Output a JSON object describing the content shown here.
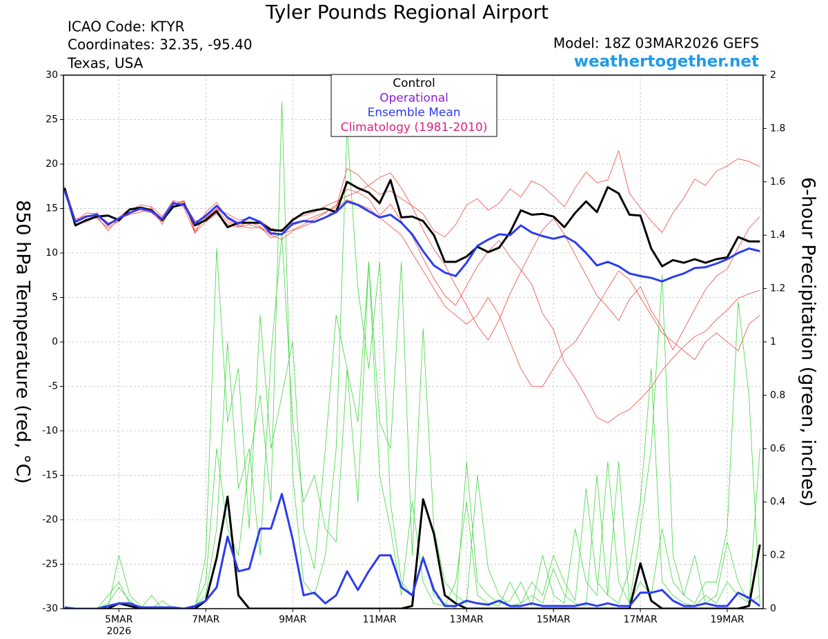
{
  "chart_data": {
    "type": "line",
    "title": "Tyler Pounds Regional Airport",
    "info_left": [
      "ICAO Code: KTYR",
      "Coordinates: 32.35, -95.40",
      "Texas, USA"
    ],
    "model": "Model: 18Z 03MAR2026 GEFS",
    "site": "weathertogether.net",
    "ylabel": "850 hPa Temperature (red, °C)",
    "y2label": "6-hour Precipitation (green, inches)",
    "legend_entries": [
      {
        "text": "Control",
        "color": "#000000"
      },
      {
        "text": "Operational",
        "color": "#8a1fd1"
      },
      {
        "text": "Ensemble Mean",
        "color": "#2b3cf0"
      },
      {
        "text": "Climatology (1981-2010)",
        "color": "#e0207a"
      }
    ],
    "xlim": [
      -0.1,
      64.3
    ],
    "xticks": [
      {
        "value": 5,
        "label": "5MAR"
      },
      {
        "value": 13,
        "label": "7MAR"
      },
      {
        "value": 21,
        "label": "9MAR"
      },
      {
        "value": 29,
        "label": "11MAR"
      },
      {
        "value": 37,
        "label": "13MAR"
      },
      {
        "value": 45,
        "label": "15MAR"
      },
      {
        "value": 53,
        "label": "17MAR"
      },
      {
        "value": 61,
        "label": "19MAR"
      }
    ],
    "year_label": "2026",
    "ylim": [
      -30,
      30
    ],
    "yticks": [
      -30,
      -25,
      -20,
      -15,
      -10,
      -5,
      0,
      5,
      10,
      15,
      20,
      25,
      30
    ],
    "y2lim": [
      0,
      2
    ],
    "y2ticks": [
      0,
      0.2,
      0.4,
      0.6,
      0.8,
      1,
      1.2,
      1.4,
      1.6,
      1.8,
      2
    ],
    "grid": true,
    "members": [
      {
        "color": "#f0473c",
        "values": [
          17,
          13.5,
          14,
          14.5,
          13,
          14,
          15,
          14.8,
          14.5,
          13.5,
          15.5,
          15.8,
          12.5,
          14,
          15,
          13.5,
          13,
          13.5,
          13,
          12,
          11.5,
          12.5,
          13,
          13.5,
          14,
          15,
          16,
          15.5,
          15,
          14,
          13,
          12,
          10,
          8,
          6,
          4,
          3,
          2,
          3,
          5,
          3,
          0,
          -3,
          -5,
          -5,
          -3,
          -1,
          0,
          2,
          4,
          6,
          8,
          7,
          5,
          3,
          1,
          0,
          -1,
          -2,
          0,
          1,
          0,
          -1,
          2,
          3
        ]
      },
      {
        "color": "#f0473c",
        "values": [
          17.5,
          13.8,
          14.2,
          13.9,
          12.8,
          13.6,
          14.6,
          15.2,
          14.9,
          13.9,
          15.4,
          15.9,
          12.3,
          13.5,
          14.4,
          13.2,
          12.9,
          13.2,
          12.8,
          12.2,
          12.7,
          13.1,
          13.6,
          14.1,
          14.6,
          15.2,
          19.5,
          18.8,
          17.5,
          16.6,
          17,
          16.1,
          15.3,
          14.4,
          12.5,
          11.8,
          13.2,
          15.4,
          16.1,
          14.8,
          15.6,
          17.2,
          16.3,
          18.1,
          17.5,
          16.4,
          15.2,
          17.3,
          19.1,
          17.9,
          18.2,
          21.5,
          16.7,
          15.1,
          13.6,
          12.3,
          14.5,
          16.2,
          18.3,
          17.6,
          19.2,
          19.8,
          20.6,
          20.3,
          19.7
        ]
      },
      {
        "color": "#f0473c",
        "values": [
          16.8,
          13.2,
          13.5,
          14.1,
          12.5,
          13.9,
          14.3,
          14.6,
          15.1,
          13.2,
          15.8,
          15.1,
          12.2,
          14.6,
          15.7,
          13.8,
          13.1,
          12.8,
          12.9,
          11.7,
          12.1,
          12.6,
          13.2,
          13.8,
          14.5,
          15.4,
          17.2,
          16.8,
          16.1,
          14.2,
          15.5,
          13.6,
          11.9,
          9.4,
          7.1,
          5.2,
          4.1,
          6.3,
          8.5,
          10.2,
          11.4,
          9.6,
          8.1,
          6.5,
          3.2,
          1.4,
          -2.3,
          -4.1,
          -6.2,
          -8.5,
          -9.1,
          -8.2,
          -7.6,
          -6.4,
          -5.1,
          -3.2,
          -1.8,
          -0.5,
          0.6,
          1.2,
          2.5,
          3.6,
          4.9,
          5.4,
          5.8
        ]
      },
      {
        "color": "#f0473c",
        "values": [
          17.2,
          13.6,
          14.5,
          14.4,
          13.4,
          13.5,
          14.8,
          15.4,
          15.2,
          14.1,
          15.9,
          15.6,
          13.6,
          13.9,
          14.9,
          14.4,
          13.7,
          13.9,
          13.6,
          12.8,
          12.4,
          13.9,
          14.2,
          14.6,
          15.3,
          15.8,
          16.4,
          16.9,
          17.6,
          18.5,
          19,
          17.3,
          15.2,
          12.6,
          10.4,
          8.7,
          6.3,
          4.1,
          1.8,
          0.2,
          2.5,
          5.4,
          7.9,
          10.3,
          12.6,
          13.9,
          12.1,
          9.8,
          7.5,
          5.2,
          3.9,
          2.4,
          4.8,
          6.2,
          3.5,
          1.6,
          -0.9,
          1.4,
          3.7,
          5.9,
          7.4,
          8.2,
          10.6,
          12.8,
          14.1
        ]
      },
      {
        "color": "#3ed63e",
        "axis": "y2",
        "values": [
          0,
          0,
          0,
          0,
          0.05,
          0.1,
          0.02,
          0,
          0,
          0.03,
          0,
          0,
          0.01,
          0.1,
          0.6,
          0.3,
          0.2,
          0.55,
          0.8,
          0.4,
          1.9,
          0.5,
          0.1,
          0.05,
          0.2,
          0.6,
          1.8,
          1.2,
          0.9,
          1.3,
          0.4,
          0.1,
          0.05,
          0.2,
          0.05,
          0.02,
          0,
          0.55,
          0.1,
          0.05,
          0.02,
          0.03,
          0.1,
          0.01,
          0.2,
          0.05,
          0.02,
          0.3,
          0.1,
          0.05,
          0.55,
          0.1,
          0.02,
          0.3,
          0.6,
          1.25,
          0.2,
          0.05,
          0.02,
          0.1,
          0.1,
          0.3,
          1.15,
          0.8,
          0.02
        ]
      },
      {
        "color": "#3ed63e",
        "axis": "y2",
        "values": [
          0,
          0,
          0,
          0,
          0,
          0.2,
          0.05,
          0.01,
          0,
          0,
          0,
          0,
          0,
          0.2,
          1.35,
          0.7,
          0.9,
          0.3,
          1.1,
          0.6,
          0.8,
          1.0,
          0.3,
          0.15,
          0.6,
          1.1,
          0.9,
          0.4,
          1.3,
          0.7,
          0.6,
          1.3,
          0.2,
          1.05,
          0.3,
          0.1,
          0.05,
          0.02,
          0.5,
          0.15,
          0.05,
          0.01,
          0.02,
          0.1,
          0.05,
          0.2,
          0.1,
          0.03,
          0.45,
          0.1,
          0.05,
          0.55,
          0.02,
          0.1,
          0.05,
          0.3,
          0.1,
          0.05,
          0.2,
          0.02,
          0.05,
          0.25,
          0.1,
          0.02,
          0.05
        ]
      },
      {
        "color": "#3ed63e",
        "axis": "y2",
        "values": [
          0,
          0,
          0,
          0,
          0.02,
          0.08,
          0.03,
          0,
          0.05,
          0,
          0,
          0,
          0.01,
          0.05,
          0.3,
          1.0,
          0.45,
          0.6,
          0.2,
          0.95,
          1.4,
          0.7,
          0.4,
          0.5,
          0.3,
          0.25,
          0.9,
          0.7,
          1.3,
          0.5,
          0.3,
          0.05,
          0.4,
          0.1,
          0.02,
          0.01,
          0.1,
          0.4,
          0.05,
          0.02,
          0.01,
          0.1,
          0.02,
          0.05,
          0.02,
          0.15,
          0.05,
          0.02,
          0.01,
          0.5,
          0.05,
          0.02,
          0.15,
          0.4,
          0.9,
          0.1,
          0.05,
          0.02,
          0.01,
          0.05,
          0.02,
          0.1,
          0.05,
          0.02,
          0.6
        ]
      }
    ],
    "series": [
      {
        "color": "#000000",
        "values": [
          17.3,
          13.1,
          13.7,
          14.1,
          14.2,
          13.7,
          14.9,
          15.1,
          14.8,
          13.7,
          15.2,
          15.5,
          13.1,
          13.7,
          14.7,
          12.9,
          13.4,
          13.4,
          13.4,
          12.6,
          12.5,
          13.7,
          14.5,
          14.8,
          15.0,
          14.6,
          18.0,
          17.3,
          16.8,
          15.6,
          18.2,
          14.0,
          14.1,
          13.6,
          12.0,
          9.0,
          9.0,
          9.6,
          10.7,
          10.1,
          10.6,
          12.3,
          14.8,
          14.3,
          14.4,
          14.1,
          12.9,
          14.5,
          15.8,
          14.6,
          17.4,
          16.7,
          14.3,
          14.2,
          10.5,
          8.5,
          9.2,
          8.9,
          9.3,
          8.9,
          9.3,
          9.5,
          11.8,
          11.3,
          11.3
        ]
      },
      {
        "color": "#2b3cf0",
        "values": [
          17.0,
          13.5,
          14.1,
          14.3,
          13.2,
          13.9,
          14.5,
          15.0,
          14.7,
          13.8,
          15.6,
          15.4,
          13.3,
          14.2,
          15.3,
          14.0,
          13.3,
          14.0,
          13.5,
          12.2,
          12.1,
          13.3,
          13.6,
          13.5,
          14.0,
          14.6,
          15.8,
          15.4,
          14.7,
          14.0,
          14.3,
          13.4,
          12.1,
          10.2,
          8.6,
          7.8,
          7.4,
          8.9,
          10.8,
          11.5,
          12.1,
          12.0,
          13.1,
          12.3,
          11.9,
          11.6,
          11.9,
          11.2,
          10.0,
          8.6,
          9.0,
          8.5,
          7.7,
          7.4,
          7.2,
          6.8,
          7.3,
          7.7,
          8.3,
          8.4,
          8.8,
          9.3,
          10.0,
          10.5,
          10.2
        ]
      },
      {
        "color": "#000000",
        "axis": "y2",
        "values": [
          0,
          0,
          0,
          0,
          0,
          0.02,
          0.01,
          0,
          0,
          0,
          0,
          0,
          0,
          0.03,
          0.19,
          0.42,
          0.05,
          0,
          0,
          0,
          0,
          0,
          0,
          0,
          0,
          0,
          0,
          0,
          0,
          0,
          0,
          0,
          0.01,
          0.41,
          0.28,
          0.05,
          0.02,
          0,
          0,
          0,
          0,
          0,
          0,
          0,
          0,
          0,
          0,
          0,
          0,
          0,
          0,
          0,
          0,
          0.17,
          0.03,
          0,
          0,
          0,
          0,
          0,
          0,
          0,
          0,
          0.01,
          0.24
        ]
      },
      {
        "color": "#2b3cf0",
        "axis": "y2",
        "values": [
          0.005,
          0,
          0,
          0,
          0.01,
          0.02,
          0.02,
          0.005,
          0.005,
          0.005,
          0.005,
          0,
          0.01,
          0.03,
          0.08,
          0.27,
          0.14,
          0.15,
          0.3,
          0.3,
          0.43,
          0.26,
          0.05,
          0.06,
          0.02,
          0.05,
          0.14,
          0.07,
          0.14,
          0.2,
          0.2,
          0.08,
          0.05,
          0.19,
          0.07,
          0.01,
          0.01,
          0.03,
          0.02,
          0.015,
          0.03,
          0.01,
          0.01,
          0.02,
          0.01,
          0.01,
          0.01,
          0.01,
          0.02,
          0.01,
          0.02,
          0.01,
          0.01,
          0.06,
          0.06,
          0.07,
          0.03,
          0.01,
          0.01,
          0.02,
          0.01,
          0.01,
          0.06,
          0.04,
          0.01
        ]
      }
    ]
  }
}
